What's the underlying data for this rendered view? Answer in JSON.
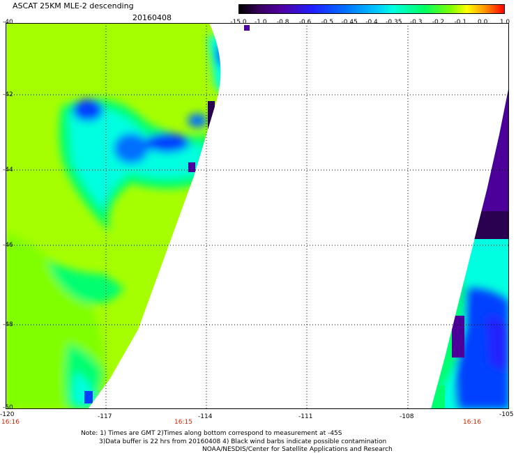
{
  "header": {
    "title": "ASCAT 25KM MLE-2 descending",
    "date": "20160408"
  },
  "colorbar": {
    "labels": [
      "-15.0",
      "-1.0",
      "-0.8",
      "-0.6",
      "-0.5",
      "-0.45",
      "-0.4",
      "-0.35",
      "-0.3",
      "-0.2",
      "-0.1",
      "0.0",
      "1.0"
    ],
    "colors": [
      "#000000",
      "#3a0060",
      "#5000a0",
      "#2020ff",
      "#0070ff",
      "#00c8ff",
      "#00ffe0",
      "#00ff60",
      "#80ff00",
      "#ffff00",
      "#ff9000",
      "#ff0000"
    ]
  },
  "map": {
    "lat_labels": [
      "-40",
      "-42",
      "-44",
      "-46",
      "-48",
      "-50"
    ],
    "lon_labels": [
      "-120",
      "-117",
      "-114",
      "-111",
      "-108",
      "-105"
    ],
    "times": [
      "16:16",
      "16:15",
      "16:16"
    ],
    "swath_colors": {
      "green": "#80ff00",
      "lime": "#a6ff00",
      "mid": "#00ff70",
      "cyan": "#00ffe0",
      "blue": "#0040ff",
      "violet": "#4c0099",
      "dark": "#2a0050"
    }
  },
  "notes": {
    "line1": "Note: 1) Times are GMT 2)Times along bottom correspond to measurement at -45S",
    "line2": "3)Data buffer is 22 hrs from 20160408 4) Black wind barbs indicate possible contamination",
    "line3": "NOAA/NESDIS/Center for Satellite Applications and Research"
  }
}
